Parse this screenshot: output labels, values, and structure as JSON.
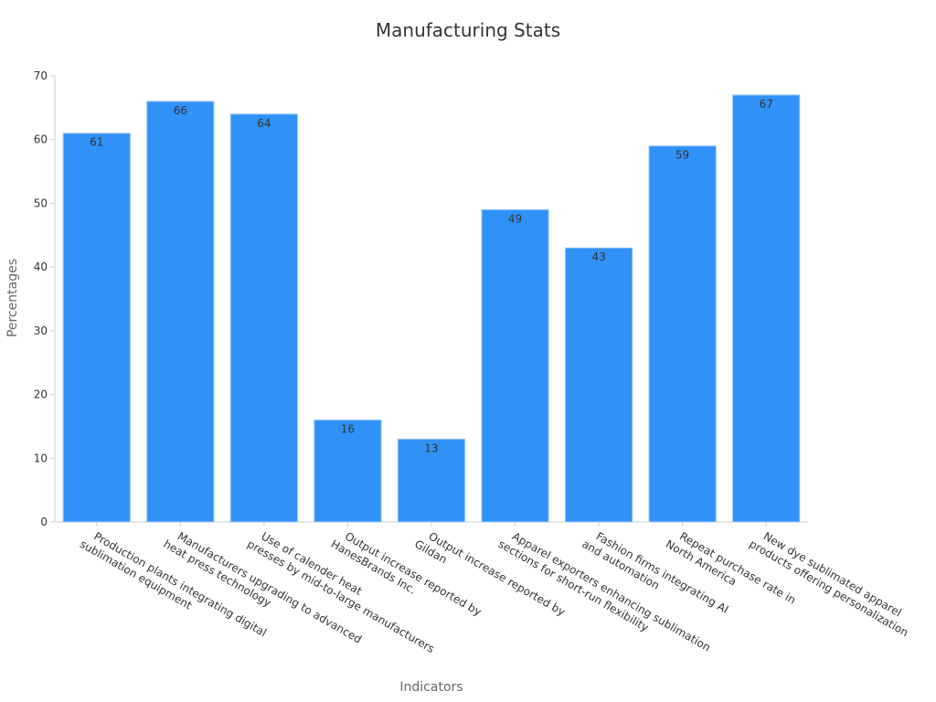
{
  "chart_data": {
    "type": "bar",
    "title": "Manufacturing Stats",
    "xlabel": "Indicators",
    "ylabel": "Percentages",
    "ylim": [
      0,
      70
    ],
    "yticks": [
      0,
      10,
      20,
      30,
      40,
      50,
      60,
      70
    ],
    "grid": false,
    "categories": [
      [
        "Production plants integrating digital",
        "sublimation equipment"
      ],
      [
        "Manufacturers upgrading to advanced",
        "heat press technology"
      ],
      [
        "Use of calender heat",
        "presses by mid-to-large manufacturers"
      ],
      [
        "Output increase reported by",
        "HanesBrands Inc."
      ],
      [
        "Output increase reported by",
        "Gildan"
      ],
      [
        "Apparel exporters enhancing sublimation",
        "sections for short-run flexibility"
      ],
      [
        "Fashion firms integrating AI",
        "and automation"
      ],
      [
        "Repeat purchase rate in",
        "North America"
      ],
      [
        "New dye sublimated apparel",
        "products offering personalization"
      ]
    ],
    "values": [
      61,
      66,
      64,
      16,
      13,
      49,
      43,
      59,
      67
    ],
    "bar_color": "#3092f7"
  }
}
